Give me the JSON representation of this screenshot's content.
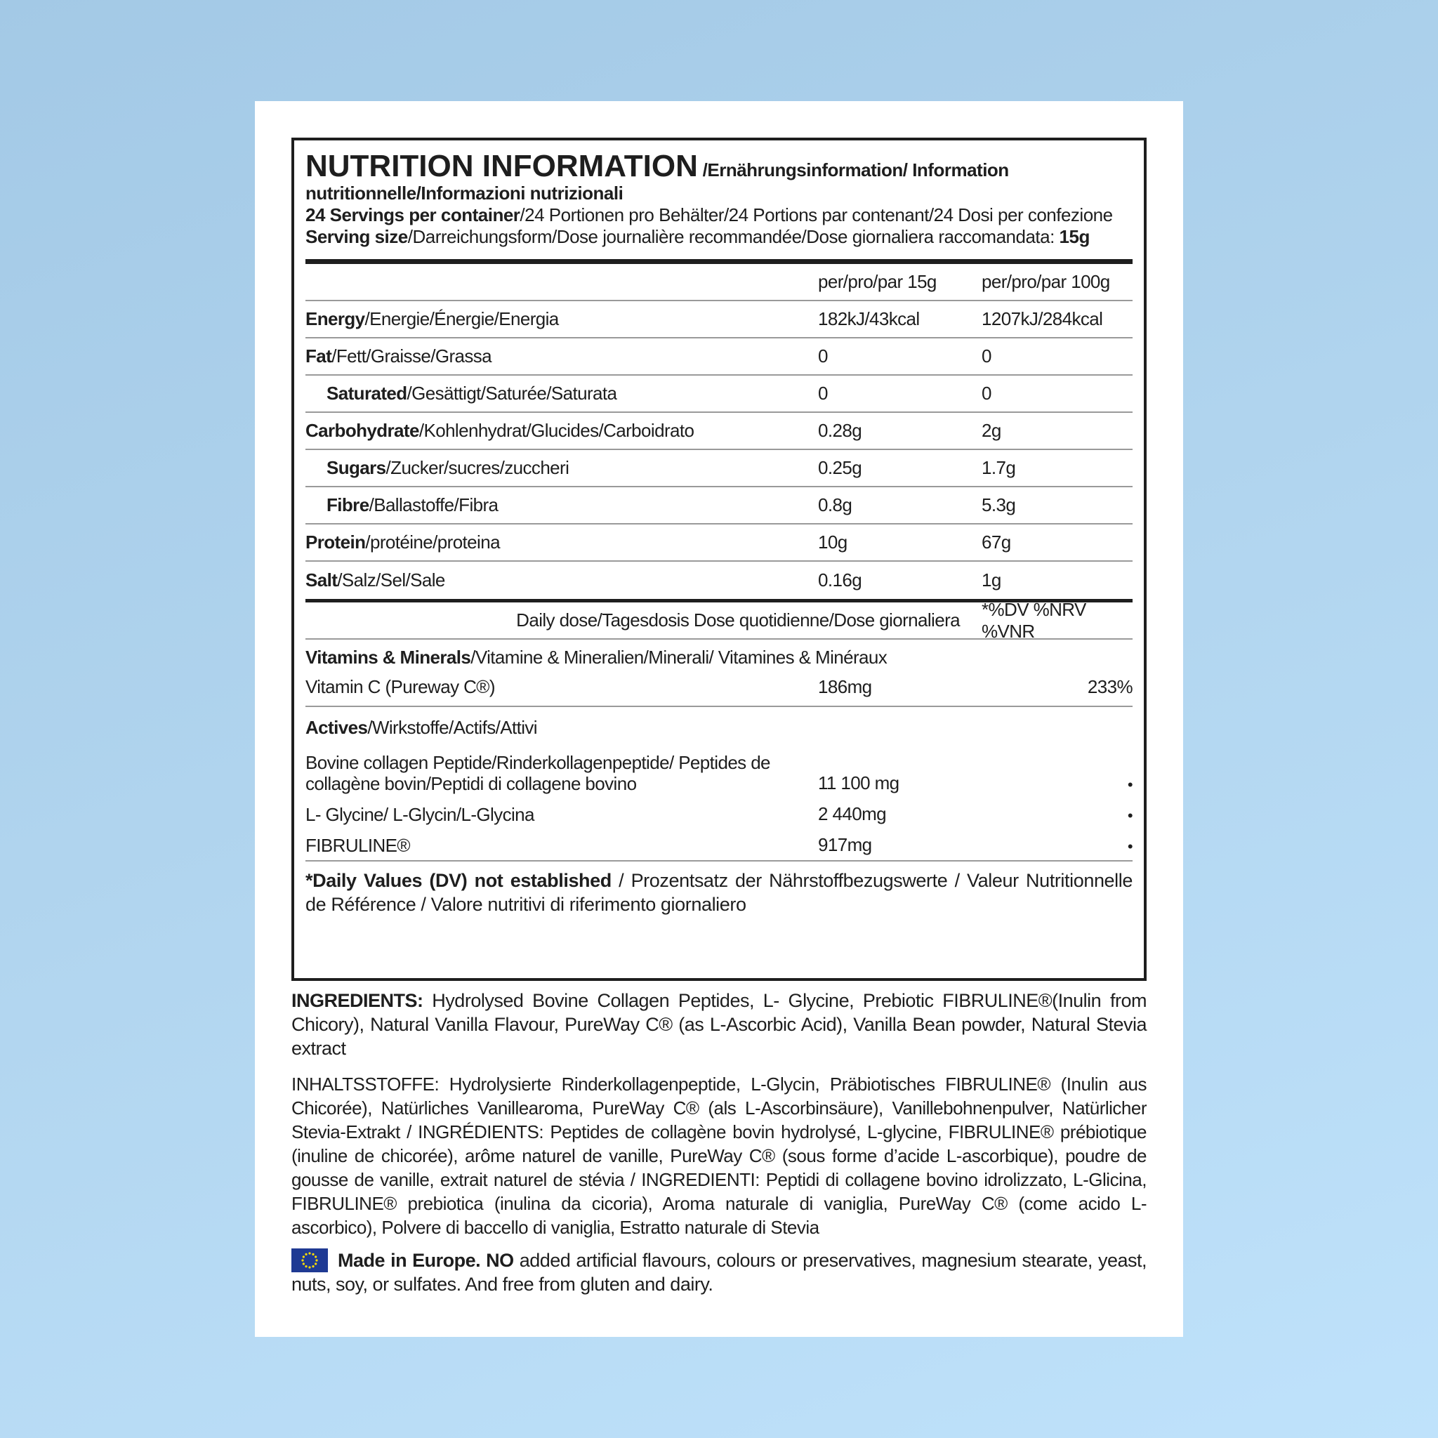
{
  "header": {
    "title_main": "NUTRITION INFORMATION",
    "title_rest": "/Ernährungsinformation/ Information nutritionnelle/Informazioni nutrizionali",
    "servings_bold": "24 Servings per container",
    "servings_rest": "/24 Portionen pro Behälter/24 Portions par contenant/24 Dosi per confezione",
    "size_bold": "Serving size",
    "size_rest": "/Darreichungsform/Dose journalière recommandée/Dose giornaliera raccomandata: ",
    "size_value": "15g"
  },
  "table": {
    "col1": "per/pro/par 15g",
    "col2": "per/pro/par 100g",
    "rows": [
      {
        "bold": "Energy",
        "rest": "/Energie/Énergie/Energia",
        "v1": "182kJ/43kcal",
        "v2": "1207kJ/284kcal"
      },
      {
        "bold": "Fat",
        "rest": "/Fett/Graisse/Grassa",
        "v1": "0",
        "v2": "0"
      },
      {
        "bold": "Saturated",
        "rest": "/Gesättigt/Saturée/Saturata",
        "v1": "0",
        "v2": "0"
      },
      {
        "bold": "Carbohydrate",
        "rest": "/Kohlenhydrat/Glucides/Carboidrato",
        "v1": "0.28g",
        "v2": "2g"
      },
      {
        "bold": "Sugars",
        "rest": "/Zucker/sucres/zuccheri",
        "v1": "0.25g",
        "v2": "1.7g"
      },
      {
        "bold": "Fibre",
        "rest": "/Ballastoffe/Fibra",
        "v1": "0.8g",
        "v2": "5.3g"
      },
      {
        "bold": "Protein",
        "rest": "/protéine/proteina",
        "v1": "10g",
        "v2": "67g"
      },
      {
        "bold": "Salt",
        "rest": "/Salz/Sel/Sale",
        "v1": "0.16g",
        "v2": "1g"
      }
    ]
  },
  "daily": {
    "label": "Daily dose/Tagesdosis Dose quotidienne/Dose giornaliera",
    "dv": "*%DV %NRV %VNR"
  },
  "vitamins": {
    "bold": "Vitamins & Minerals",
    "rest": "/Vitamine & Mineralien/Minerali/ Vitamines & Minéraux",
    "item": "Vitamin C (Pureway C®)",
    "value": "186mg",
    "pct": "233%"
  },
  "actives": {
    "bold": "Actives",
    "rest": "/Wirkstoffe/Actifs/Attivi",
    "items": [
      {
        "name": "Bovine collagen Peptide/Rinderkollagenpeptide/ Peptides de collagène bovin/Peptidi di collagene bovino",
        "value": "11 100 mg",
        "pct": "•"
      },
      {
        "name": "L- Glycine/ L-Glycin/L-Glycina",
        "value": "2 440mg",
        "pct": "•"
      },
      {
        "name": "FIBRULINE®",
        "value": "917mg",
        "pct": "•"
      }
    ]
  },
  "footnote": {
    "bold": "*Daily Values (DV) not established",
    "rest": " / Prozentsatz der Nährstoffbezugswerte / Valeur Nutritionnelle de Référence / Valore nutritivi di riferimento giornaliero"
  },
  "ingredients": {
    "bold": "INGREDIENTS:",
    "text": " Hydrolysed Bovine Collagen Peptides, L- Glycine, Prebiotic FIBRULINE®(Inulin from Chicory), Natural Vanilla Flavour, PureWay C® (as L-Ascorbic Acid), Vanilla Bean powder, Natural Stevia extract",
    "multi": "INHALTSSTOFFE: Hydrolysierte Rinderkollagenpeptide, L-Glycin, Präbiotisches FIBRULINE® (Inulin aus Chicorée), Natürliches Vanillearoma, PureWay C® (als L-Ascorbinsäure), Vanillebohnenpulver, Natürlicher Stevia-Extrakt / INGRÉDIENTS: Peptides de collagène bovin hydrolysé, L-glycine, FIBRULINE® prébiotique (inuline de chicorée), arôme naturel de vanille, PureWay C® (sous forme d’acide L-ascorbique), poudre de gousse de vanille, extrait naturel de stévia / INGREDIENTI: Peptidi di collagene bovino idrolizzato, L-Glicina, FIBRULINE® prebiotica (inulina da cicoria), Aroma naturale di vaniglia, PureWay C® (come acido L-ascorbico), Polvere di baccello di vaniglia, Estratto naturale di Stevia"
  },
  "made": {
    "bold": "Made in Europe. NO",
    "text": " added artificial flavours, colours or preservatives, magnesium stearate, yeast, nuts, soy, or sulfates. And free from gluten and dairy.",
    "flag_icon": "eu-flag-icon"
  }
}
